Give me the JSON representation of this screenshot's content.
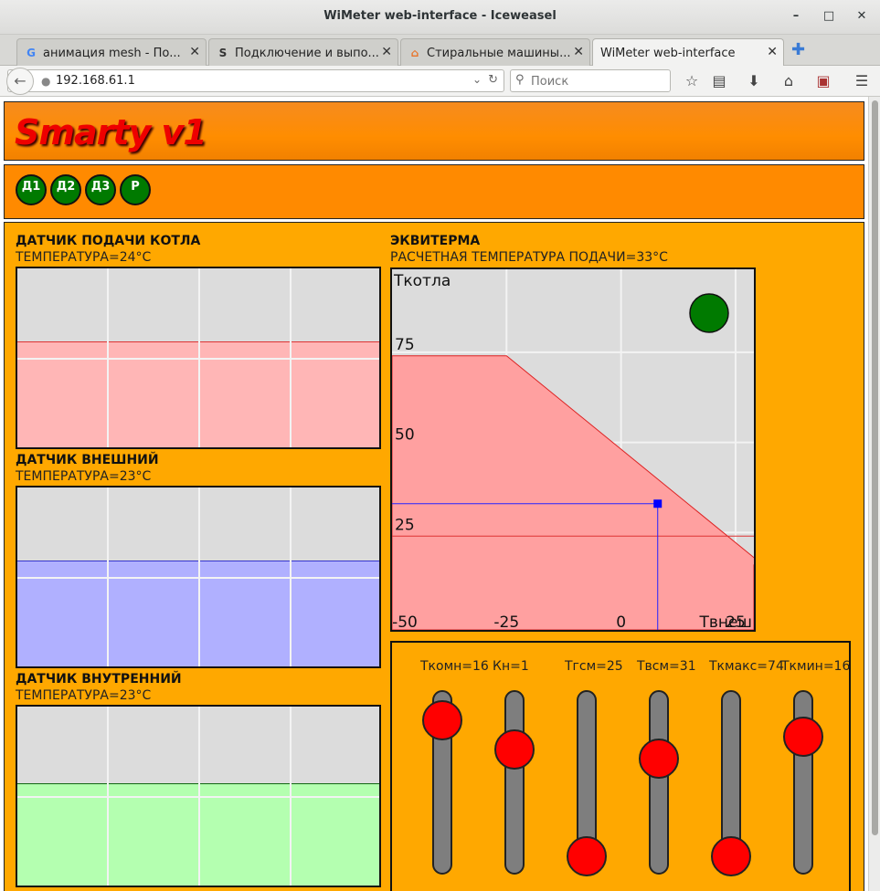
{
  "window": {
    "title": "WiMeter web-interface - Iceweasel"
  },
  "tabs": [
    {
      "label": "анимация mesh - По...",
      "icon": "google-icon",
      "icon_text": "G",
      "icon_color": "#4285f4"
    },
    {
      "label": "Подключение и выпо...",
      "icon": "site-icon",
      "icon_text": "S",
      "icon_color": "#333333"
    },
    {
      "label": "Стиральные машины...",
      "icon": "site-icon",
      "icon_text": "⌂",
      "icon_color": "#e8742a"
    },
    {
      "label": "WiMeter web-interface",
      "icon": "",
      "icon_text": "",
      "icon_color": "#333333"
    }
  ],
  "navbar": {
    "url": "192.168.61.1",
    "search_placeholder": "Поиск"
  },
  "app": {
    "logo": "Smarty v1",
    "nav_buttons": [
      "Д1",
      "Д2",
      "Д3",
      "Р"
    ],
    "colors": {
      "header": "#ff8a00",
      "main": "#ffa800",
      "button": "#007a00",
      "knob": "#ff0000"
    }
  },
  "sensors": [
    {
      "title": "ДАТЧИК ПОДАЧИ КОТЛА",
      "reading": "ТЕМПЕРАТУРА=24°С",
      "level": 0.59,
      "fill": "#ffb6b6",
      "line": "#dd3333"
    },
    {
      "title": "ДАТЧИК ВНЕШНИЙ",
      "reading": "ТЕМПЕРАТУРА=23°С",
      "level": 0.59,
      "fill": "#b0b0ff",
      "line": "#3333cc"
    },
    {
      "title": "ДАТЧИК ВНУТРЕННИЙ",
      "reading": "ТЕМПЕРАТУРА=23°С",
      "level": 0.57,
      "fill": "#b4ffb0",
      "line": "#116611"
    }
  ],
  "equitherm": {
    "title": "ЭКВИТЕРМА",
    "reading": "РАСЧЕТНАЯ ТЕМПЕРАТУРА ПОДАЧИ=33°С",
    "y_axis_label": "Ткотла",
    "x_axis_label": "Твнеш",
    "y_ticks": [
      "75",
      "50",
      "25"
    ],
    "x_ticks": [
      "-50",
      "-25",
      "0",
      "25"
    ],
    "indicator_color": "#007a00"
  },
  "chart_data": {
    "type": "area",
    "title": "ЭКВИТЕРМА",
    "xlabel": "Твнеш",
    "ylabel": "Ткотла",
    "xlim": [
      -50,
      29
    ],
    "ylim": [
      -2,
      98
    ],
    "x": [
      -50,
      -25,
      31
    ],
    "y": [
      74,
      74,
      16
    ],
    "current_point": {
      "x": 8,
      "y": 33
    },
    "reference_y": 24
  },
  "sliders": [
    {
      "label": "Ткомн=16",
      "value": 0.92
    },
    {
      "label": "Кн=1",
      "value": 0.72
    },
    {
      "label": "Тгсм=25",
      "value": 0.0
    },
    {
      "label": "Твсм=31",
      "value": 0.66
    },
    {
      "label": "Ткмакс=74",
      "value": 0.0
    },
    {
      "label": "Ткмин=16",
      "value": 0.81
    }
  ]
}
